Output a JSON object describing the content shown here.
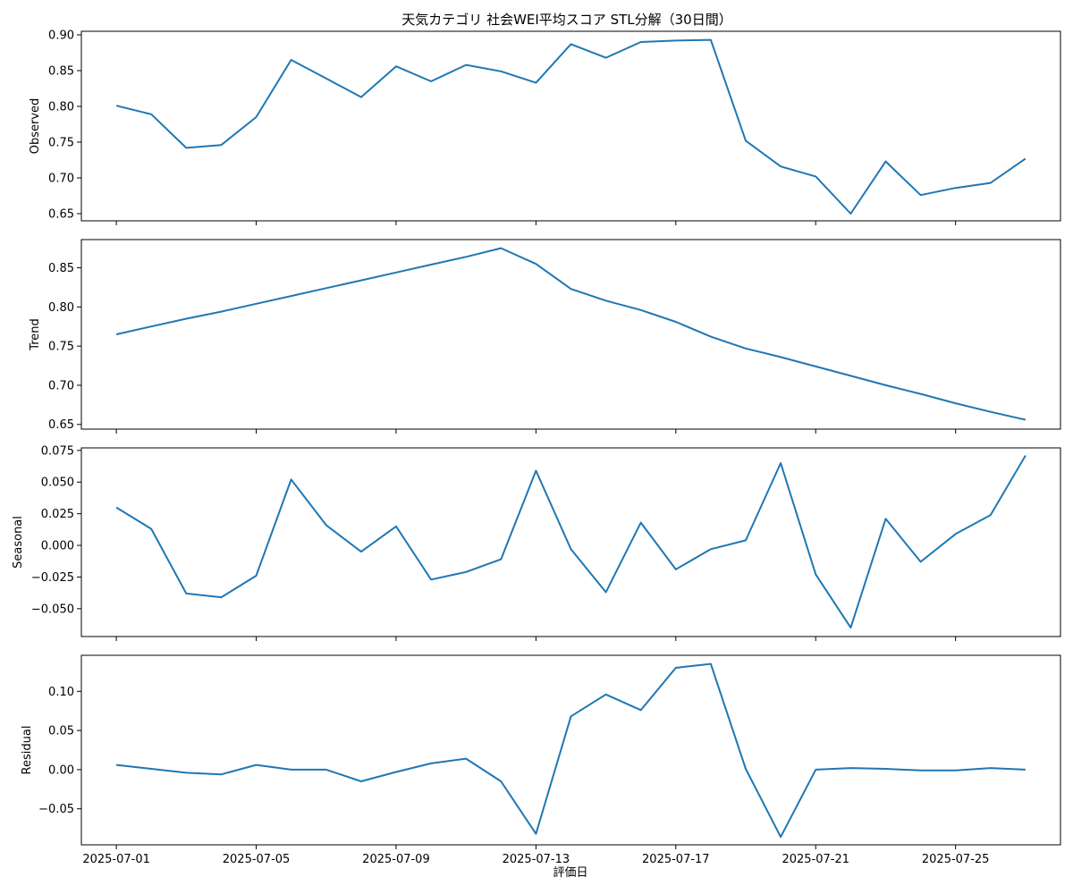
{
  "chart_data": {
    "type": "line",
    "title": "天気カテゴリ 社会WEI平均スコア STL分解（30日間）",
    "xlabel": "評価日",
    "x": [
      "2025-07-01",
      "2025-07-02",
      "2025-07-03",
      "2025-07-04",
      "2025-07-05",
      "2025-07-06",
      "2025-07-07",
      "2025-07-08",
      "2025-07-09",
      "2025-07-10",
      "2025-07-11",
      "2025-07-12",
      "2025-07-13",
      "2025-07-14",
      "2025-07-15",
      "2025-07-16",
      "2025-07-17",
      "2025-07-18",
      "2025-07-19",
      "2025-07-20",
      "2025-07-21",
      "2025-07-22",
      "2025-07-23",
      "2025-07-24",
      "2025-07-25",
      "2025-07-26",
      "2025-07-27"
    ],
    "x_ticks": [
      "2025-07-01",
      "2025-07-05",
      "2025-07-09",
      "2025-07-13",
      "2025-07-17",
      "2025-07-21",
      "2025-07-25"
    ],
    "x_range": [
      "2025-06-30",
      "2025-07-28"
    ],
    "grid": false,
    "panels": [
      {
        "ylabel": "Observed",
        "ylim": [
          0.64,
          0.905
        ],
        "yticks": [
          "0.65",
          "0.70",
          "0.75",
          "0.80",
          "0.85",
          "0.90"
        ],
        "values": [
          0.801,
          0.789,
          0.742,
          0.746,
          0.785,
          0.865,
          0.839,
          0.813,
          0.856,
          0.835,
          0.858,
          0.849,
          0.833,
          0.887,
          0.868,
          0.89,
          0.892,
          0.893,
          0.752,
          0.716,
          0.702,
          0.65,
          0.723,
          0.676,
          0.686,
          0.693,
          0.727
        ]
      },
      {
        "ylabel": "Trend",
        "ylim": [
          0.644,
          0.886
        ],
        "yticks": [
          "0.65",
          "0.70",
          "0.75",
          "0.80",
          "0.85"
        ],
        "values": [
          0.765,
          0.775,
          0.785,
          0.794,
          0.804,
          0.814,
          0.824,
          0.834,
          0.844,
          0.854,
          0.864,
          0.875,
          0.855,
          0.823,
          0.808,
          0.796,
          0.781,
          0.762,
          0.747,
          0.736,
          0.724,
          0.712,
          0.7,
          0.689,
          0.677,
          0.666,
          0.656
        ]
      },
      {
        "ylabel": "Seasonal",
        "ylim": [
          -0.072,
          0.077
        ],
        "yticks": [
          "−0.050",
          "−0.025",
          "0.000",
          "0.025",
          "0.050",
          "0.075"
        ],
        "values": [
          0.03,
          0.013,
          -0.038,
          -0.041,
          -0.024,
          0.052,
          0.016,
          -0.005,
          0.015,
          -0.027,
          -0.021,
          -0.011,
          0.059,
          -0.003,
          -0.037,
          0.018,
          -0.019,
          -0.003,
          0.004,
          0.065,
          -0.023,
          -0.065,
          0.021,
          -0.013,
          0.009,
          0.024,
          0.071
        ]
      },
      {
        "ylabel": "Residual",
        "ylim": [
          -0.096,
          0.146
        ],
        "yticks": [
          "−0.05",
          "0.00",
          "0.05",
          "0.10"
        ],
        "values": [
          0.006,
          0.001,
          -0.004,
          -0.006,
          0.006,
          0.0,
          0.0,
          -0.015,
          -0.003,
          0.008,
          0.014,
          -0.015,
          -0.082,
          0.068,
          0.096,
          0.076,
          0.13,
          0.135,
          0.001,
          -0.086,
          0.0,
          0.002,
          0.001,
          -0.001,
          -0.001,
          0.002,
          0.0
        ]
      }
    ],
    "line_color": "#1f77b4"
  }
}
